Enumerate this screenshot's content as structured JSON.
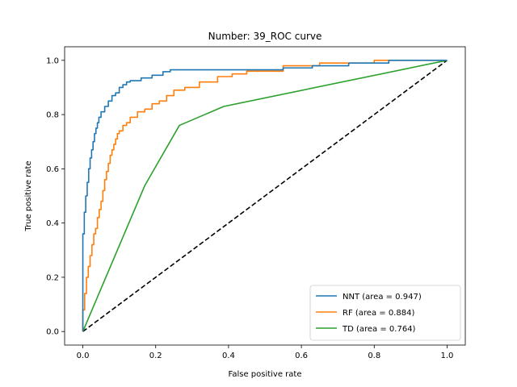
{
  "chart_data": {
    "type": "line",
    "title": "Number: 39_ROC curve",
    "xlabel": "False positive rate",
    "ylabel": "True positive rate",
    "xlim": [
      -0.05,
      1.05
    ],
    "ylim": [
      -0.05,
      1.05
    ],
    "xticks": [
      0.0,
      0.2,
      0.4,
      0.6,
      0.8,
      1.0
    ],
    "yticks": [
      0.0,
      0.2,
      0.4,
      0.6,
      0.8,
      1.0
    ],
    "xtick_labels": [
      "0.0",
      "0.2",
      "0.4",
      "0.6",
      "0.8",
      "1.0"
    ],
    "ytick_labels": [
      "0.0",
      "0.2",
      "0.4",
      "0.6",
      "0.8",
      "1.0"
    ],
    "grid": false,
    "legend_position": "lower-right",
    "series": [
      {
        "name": "NNT (area = 0.947)",
        "color": "#1f77b4",
        "x": [
          0.0,
          0.0,
          0.004,
          0.004,
          0.008,
          0.008,
          0.012,
          0.012,
          0.016,
          0.016,
          0.02,
          0.02,
          0.024,
          0.024,
          0.028,
          0.028,
          0.032,
          0.032,
          0.036,
          0.036,
          0.04,
          0.04,
          0.044,
          0.044,
          0.05,
          0.05,
          0.06,
          0.06,
          0.07,
          0.07,
          0.08,
          0.08,
          0.09,
          0.09,
          0.1,
          0.1,
          0.11,
          0.11,
          0.12,
          0.12,
          0.13,
          0.13,
          0.16,
          0.16,
          0.19,
          0.19,
          0.22,
          0.22,
          0.24,
          0.24,
          0.55,
          0.55,
          0.63,
          0.63,
          0.73,
          0.73,
          0.84,
          0.84,
          1.0
        ],
        "y": [
          0.0,
          0.36,
          0.36,
          0.44,
          0.44,
          0.5,
          0.5,
          0.55,
          0.55,
          0.6,
          0.6,
          0.64,
          0.64,
          0.67,
          0.67,
          0.7,
          0.7,
          0.73,
          0.73,
          0.75,
          0.75,
          0.77,
          0.77,
          0.79,
          0.79,
          0.81,
          0.81,
          0.83,
          0.83,
          0.85,
          0.85,
          0.87,
          0.87,
          0.88,
          0.88,
          0.9,
          0.9,
          0.91,
          0.91,
          0.92,
          0.92,
          0.925,
          0.925,
          0.935,
          0.935,
          0.945,
          0.945,
          0.958,
          0.958,
          0.965,
          0.965,
          0.972,
          0.972,
          0.98,
          0.98,
          0.99,
          0.99,
          1.0,
          1.0
        ]
      },
      {
        "name": "RF (area = 0.884)",
        "color": "#ff7f0e",
        "x": [
          0.0,
          0.0,
          0.005,
          0.005,
          0.01,
          0.01,
          0.015,
          0.015,
          0.02,
          0.02,
          0.025,
          0.025,
          0.03,
          0.03,
          0.035,
          0.035,
          0.04,
          0.04,
          0.045,
          0.045,
          0.05,
          0.05,
          0.055,
          0.055,
          0.06,
          0.06,
          0.065,
          0.065,
          0.07,
          0.07,
          0.075,
          0.075,
          0.08,
          0.08,
          0.085,
          0.085,
          0.09,
          0.09,
          0.095,
          0.095,
          0.1,
          0.1,
          0.11,
          0.11,
          0.12,
          0.12,
          0.13,
          0.13,
          0.15,
          0.15,
          0.17,
          0.17,
          0.19,
          0.19,
          0.21,
          0.21,
          0.23,
          0.23,
          0.25,
          0.25,
          0.28,
          0.28,
          0.32,
          0.32,
          0.37,
          0.37,
          0.41,
          0.41,
          0.45,
          0.45,
          0.55,
          0.55,
          0.65,
          0.65,
          0.8,
          0.8,
          1.0
        ],
        "y": [
          0.0,
          0.08,
          0.08,
          0.14,
          0.14,
          0.2,
          0.2,
          0.24,
          0.24,
          0.28,
          0.28,
          0.32,
          0.32,
          0.36,
          0.36,
          0.38,
          0.38,
          0.42,
          0.42,
          0.45,
          0.45,
          0.48,
          0.48,
          0.52,
          0.52,
          0.56,
          0.56,
          0.59,
          0.59,
          0.62,
          0.62,
          0.65,
          0.65,
          0.67,
          0.67,
          0.69,
          0.69,
          0.71,
          0.71,
          0.73,
          0.73,
          0.74,
          0.74,
          0.76,
          0.76,
          0.77,
          0.77,
          0.79,
          0.79,
          0.81,
          0.81,
          0.82,
          0.82,
          0.84,
          0.84,
          0.85,
          0.85,
          0.87,
          0.87,
          0.89,
          0.89,
          0.9,
          0.9,
          0.92,
          0.92,
          0.94,
          0.94,
          0.95,
          0.95,
          0.96,
          0.96,
          0.98,
          0.98,
          0.99,
          0.99,
          1.0,
          1.0
        ]
      },
      {
        "name": "TD (area = 0.764)",
        "color": "#2ca02c",
        "x": [
          0.0,
          0.17,
          0.265,
          0.387,
          1.0
        ],
        "y": [
          0.0,
          0.538,
          0.76,
          0.83,
          1.0
        ]
      },
      {
        "name": "",
        "color": "#000000",
        "dashed": true,
        "x": [
          0.0,
          1.0
        ],
        "y": [
          0.0,
          1.0
        ]
      }
    ]
  }
}
